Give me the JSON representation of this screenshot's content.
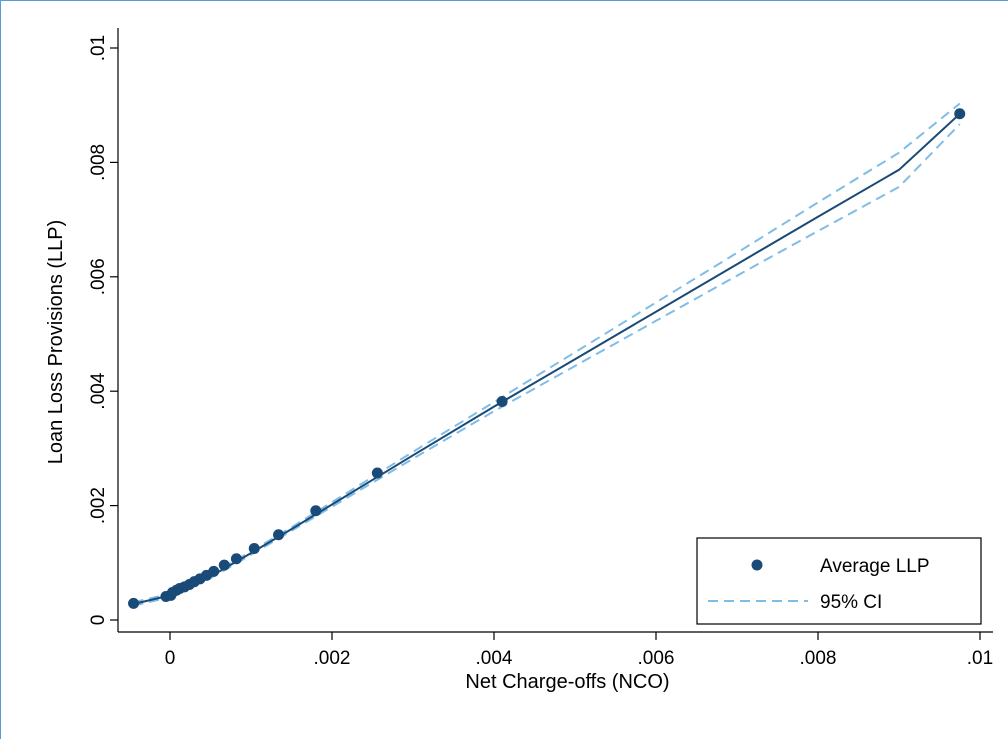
{
  "colors": {
    "marker": "#1a4a78",
    "fit_line": "#1a4a78",
    "ci": "#7fbde6",
    "frame": "#5b9bd5",
    "axis": "#000000"
  },
  "chart_data": {
    "type": "scatter",
    "title": "",
    "xlabel": "Net Charge-offs (NCO)",
    "ylabel": "Loan Loss Provisions (LLP)",
    "xlim": [
      -0.0005,
      0.01
    ],
    "ylim": [
      0,
      0.01
    ],
    "x_ticks": [
      0,
      0.002,
      0.004,
      0.006,
      0.008,
      0.01
    ],
    "x_tick_labels": [
      "0",
      ".002",
      ".004",
      ".006",
      ".008",
      ".01"
    ],
    "y_ticks": [
      0,
      0.002,
      0.004,
      0.006,
      0.008,
      0.01
    ],
    "y_tick_labels": [
      "0",
      ".002",
      ".004",
      ".006",
      ".008",
      ".01"
    ],
    "grid": false,
    "legend_position": "bottom-right",
    "series": [
      {
        "name": "Average LLP",
        "kind": "scatter",
        "x": [
          -0.00045,
          -5e-05,
          1e-05,
          3e-05,
          8e-05,
          0.00012,
          0.00018,
          0.00024,
          0.0003,
          0.00037,
          0.00045,
          0.00054,
          0.00067,
          0.00082,
          0.00104,
          0.00134,
          0.0018,
          0.00256,
          0.0041,
          0.00975
        ],
        "y": [
          0.00029,
          0.00041,
          0.00043,
          0.00048,
          0.00052,
          0.00055,
          0.00058,
          0.00062,
          0.00067,
          0.00072,
          0.00078,
          0.00085,
          0.00096,
          0.00107,
          0.00125,
          0.00149,
          0.00191,
          0.00257,
          0.00382,
          0.00885
        ]
      },
      {
        "name": "fit",
        "kind": "line",
        "x": [
          -0.00045,
          0,
          0.0005,
          0.001,
          0.0015,
          0.002,
          0.003,
          0.004,
          0.005,
          0.006,
          0.007,
          0.008,
          0.009,
          0.00975
        ],
        "y": [
          0.00028,
          0.00043,
          0.00076,
          0.00117,
          0.00159,
          0.00202,
          0.00288,
          0.00373,
          0.00456,
          0.00539,
          0.00622,
          0.00705,
          0.00787,
          0.00885
        ]
      },
      {
        "name": "95% CI",
        "kind": "dashed-band",
        "x": [
          -0.00045,
          0,
          0.0005,
          0.001,
          0.0015,
          0.002,
          0.003,
          0.004,
          0.005,
          0.006,
          0.007,
          0.008,
          0.009,
          0.00975
        ],
        "y_upper": [
          0.00031,
          0.00046,
          0.00079,
          0.0012,
          0.00162,
          0.00206,
          0.00294,
          0.00381,
          0.00468,
          0.00555,
          0.00642,
          0.0073,
          0.00817,
          0.00903
        ],
        "y_lower": [
          0.00025,
          0.0004,
          0.00073,
          0.00114,
          0.00156,
          0.00198,
          0.00282,
          0.00365,
          0.00444,
          0.00523,
          0.00602,
          0.0068,
          0.00757,
          0.00867
        ]
      }
    ],
    "legend": [
      {
        "label": "Average LLP",
        "symbol": "dot"
      },
      {
        "label": "95% CI",
        "symbol": "dashed-line"
      }
    ]
  }
}
